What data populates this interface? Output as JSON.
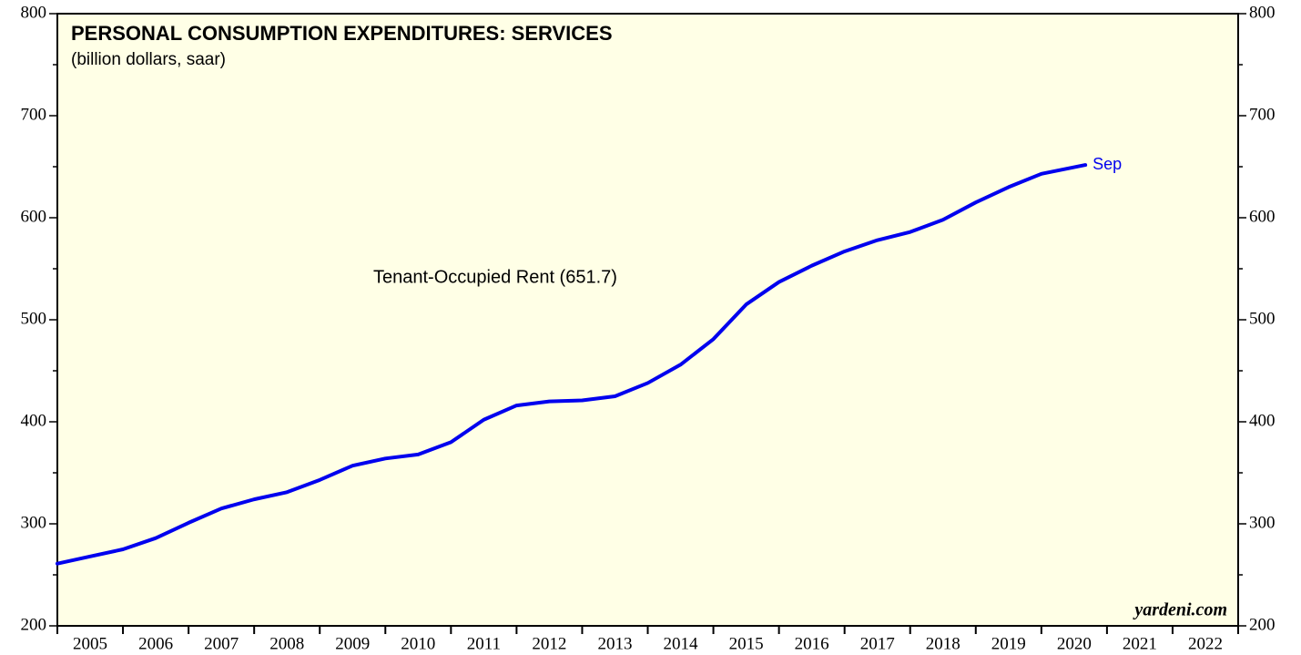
{
  "chart_data": {
    "type": "line",
    "title": "PERSONAL CONSUMPTION EXPENDITURES: SERVICES",
    "subtitle": "(billion dollars, saar)",
    "series_label": "Tenant-Occupied Rent (651.7)",
    "end_label": "Sep",
    "source": "yardeni.com",
    "x": [
      2005.0,
      2005.5,
      2006.0,
      2006.5,
      2007.0,
      2007.5,
      2008.0,
      2008.5,
      2009.0,
      2009.5,
      2010.0,
      2010.5,
      2011.0,
      2011.5,
      2012.0,
      2012.5,
      2013.0,
      2013.5,
      2014.0,
      2014.5,
      2015.0,
      2015.5,
      2016.0,
      2016.5,
      2017.0,
      2017.5,
      2018.0,
      2018.5,
      2019.0,
      2019.5,
      2020.0,
      2020.67
    ],
    "series": [
      {
        "name": "Tenant-Occupied Rent",
        "color": "#0000ee",
        "values": [
          261,
          268,
          275,
          286,
          301,
          315,
          324,
          331,
          343,
          357,
          364,
          368,
          380,
          402,
          416,
          420,
          421,
          425,
          438,
          456,
          481,
          515,
          537,
          553,
          567,
          578,
          586,
          598,
          615,
          630,
          643,
          651.7
        ]
      }
    ],
    "xlim": [
      2005,
      2023
    ],
    "xticks": [
      2005,
      2006,
      2007,
      2008,
      2009,
      2010,
      2011,
      2012,
      2013,
      2014,
      2015,
      2016,
      2017,
      2018,
      2019,
      2020,
      2021,
      2022,
      2023
    ],
    "year_labels": [
      "2005",
      "2006",
      "2007",
      "2008",
      "2009",
      "2010",
      "2011",
      "2012",
      "2013",
      "2014",
      "2015",
      "2016",
      "2017",
      "2018",
      "2019",
      "2020",
      "2021",
      "2022"
    ],
    "ylim": [
      200,
      800
    ],
    "yticks": [
      200,
      300,
      400,
      500,
      600,
      700,
      800
    ],
    "yminor_ticks": [
      250,
      350,
      450,
      550,
      650,
      750
    ],
    "background": "#ffffe6"
  }
}
